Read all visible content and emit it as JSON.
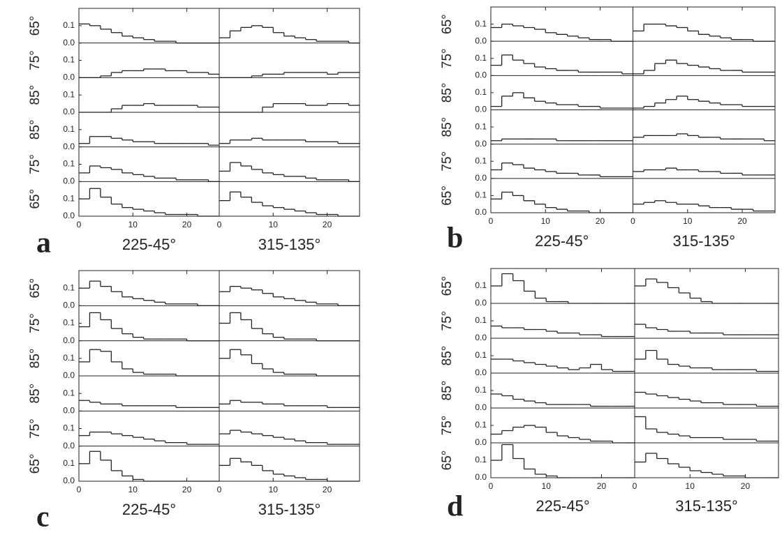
{
  "chart_data": [
    {
      "type": "step",
      "label": "a",
      "columns": [
        "225-45°",
        "315-135°"
      ],
      "row_labels": [
        "65°",
        "75°",
        "85°",
        "85°",
        "75°",
        "65°"
      ],
      "bins": [
        0,
        2,
        4,
        6,
        8,
        10,
        12,
        14,
        16,
        18,
        20,
        22,
        24,
        26
      ],
      "xlim": [
        0,
        26
      ],
      "xticks": [
        0,
        10,
        20
      ],
      "ylim": [
        0,
        0.2
      ],
      "yticks": [
        {
          "value": 0,
          "label": "0.0"
        },
        {
          "value": 0.1,
          "label": "0.1"
        }
      ],
      "values": [
        [
          [
            0.11,
            0.1,
            0.08,
            0.06,
            0.04,
            0.03,
            0.02,
            0.01,
            0.01,
            0,
            0,
            0,
            0
          ],
          [
            0,
            0,
            0.01,
            0.03,
            0.04,
            0.04,
            0.05,
            0.05,
            0.04,
            0.04,
            0.03,
            0.03,
            0.02
          ],
          [
            0,
            0,
            0,
            0.02,
            0.04,
            0.04,
            0.05,
            0.04,
            0.04,
            0.04,
            0.04,
            0.03,
            0.03
          ],
          [
            0.02,
            0.06,
            0.06,
            0.05,
            0.04,
            0.03,
            0.03,
            0.02,
            0.02,
            0.02,
            0.02,
            0.02,
            0.01
          ],
          [
            0.05,
            0.09,
            0.08,
            0.07,
            0.05,
            0.04,
            0.03,
            0.02,
            0.02,
            0.01,
            0.01,
            0.01,
            0
          ],
          [
            0.1,
            0.16,
            0.11,
            0.07,
            0.05,
            0.04,
            0.03,
            0.02,
            0.01,
            0.01,
            0.01,
            0,
            0
          ]
        ],
        [
          [
            0.03,
            0.07,
            0.09,
            0.1,
            0.09,
            0.06,
            0.04,
            0.03,
            0.02,
            0.01,
            0.01,
            0.01,
            0
          ],
          [
            0,
            0,
            0,
            0.01,
            0.02,
            0.02,
            0.03,
            0.03,
            0.03,
            0.03,
            0.02,
            0.03,
            0.03
          ],
          [
            0,
            0,
            0,
            0,
            0.03,
            0.05,
            0.05,
            0.05,
            0.04,
            0.04,
            0.05,
            0.05,
            0.04
          ],
          [
            0.02,
            0.04,
            0.04,
            0.05,
            0.04,
            0.04,
            0.04,
            0.04,
            0.03,
            0.03,
            0.03,
            0.02,
            0.02
          ],
          [
            0.06,
            0.11,
            0.09,
            0.07,
            0.05,
            0.04,
            0.03,
            0.03,
            0.02,
            0.01,
            0.01,
            0.01,
            0
          ],
          [
            0.09,
            0.14,
            0.11,
            0.08,
            0.06,
            0.05,
            0.04,
            0.03,
            0.02,
            0.01,
            0.01,
            0,
            0
          ]
        ]
      ]
    },
    {
      "type": "step",
      "label": "b",
      "columns": [
        "225-45°",
        "315-135°"
      ],
      "row_labels": [
        "65°",
        "75°",
        "85°",
        "85°",
        "75°",
        "65°"
      ],
      "bins": [
        0,
        2,
        4,
        6,
        8,
        10,
        12,
        14,
        16,
        18,
        20,
        22,
        24,
        26
      ],
      "xlim": [
        0,
        26
      ],
      "xticks": [
        0,
        10,
        20
      ],
      "ylim": [
        0,
        0.2
      ],
      "yticks": [
        {
          "value": 0,
          "label": "0.0"
        },
        {
          "value": 0.1,
          "label": "0.1"
        }
      ],
      "values": [
        [
          [
            0.08,
            0.1,
            0.09,
            0.08,
            0.07,
            0.05,
            0.04,
            0.03,
            0.02,
            0.01,
            0.01,
            0,
            0
          ],
          [
            0.06,
            0.12,
            0.09,
            0.07,
            0.05,
            0.04,
            0.03,
            0.03,
            0.02,
            0.02,
            0.02,
            0.02,
            0.01
          ],
          [
            0.02,
            0.08,
            0.1,
            0.07,
            0.05,
            0.04,
            0.03,
            0.03,
            0.02,
            0.02,
            0.01,
            0.01,
            0.01
          ],
          [
            0.02,
            0.03,
            0.03,
            0.03,
            0.03,
            0.03,
            0.02,
            0.02,
            0.02,
            0.02,
            0.02,
            0.02,
            0.02
          ],
          [
            0.05,
            0.09,
            0.08,
            0.06,
            0.05,
            0.04,
            0.03,
            0.03,
            0.02,
            0.02,
            0.01,
            0.01,
            0.01
          ],
          [
            0.08,
            0.12,
            0.1,
            0.07,
            0.05,
            0.03,
            0.02,
            0.01,
            0.01,
            0,
            0,
            0,
            0
          ]
        ],
        [
          [
            0.06,
            0.1,
            0.1,
            0.09,
            0.08,
            0.06,
            0.04,
            0.03,
            0.02,
            0.01,
            0.01,
            0,
            0
          ],
          [
            0.01,
            0.03,
            0.07,
            0.09,
            0.07,
            0.06,
            0.05,
            0.04,
            0.03,
            0.03,
            0.02,
            0.02,
            0.02
          ],
          [
            0.01,
            0.02,
            0.04,
            0.06,
            0.08,
            0.06,
            0.05,
            0.04,
            0.03,
            0.03,
            0.02,
            0.02,
            0.02
          ],
          [
            0.04,
            0.05,
            0.05,
            0.05,
            0.06,
            0.05,
            0.04,
            0.04,
            0.03,
            0.03,
            0.03,
            0.03,
            0.02
          ],
          [
            0.04,
            0.05,
            0.05,
            0.06,
            0.05,
            0.05,
            0.04,
            0.04,
            0.03,
            0.03,
            0.02,
            0.02,
            0.02
          ],
          [
            0.05,
            0.06,
            0.07,
            0.06,
            0.05,
            0.05,
            0.04,
            0.03,
            0.03,
            0.02,
            0.02,
            0.01,
            0.01
          ]
        ]
      ]
    },
    {
      "type": "step",
      "label": "c",
      "columns": [
        "225-45°",
        "315-135°"
      ],
      "row_labels": [
        "65°",
        "75°",
        "85°",
        "85°",
        "75°",
        "65°"
      ],
      "bins": [
        0,
        2,
        4,
        6,
        8,
        10,
        12,
        14,
        16,
        18,
        20,
        22,
        24,
        26
      ],
      "xlim": [
        0,
        26
      ],
      "xticks": [
        0,
        10,
        20
      ],
      "ylim": [
        0,
        0.2
      ],
      "yticks": [
        {
          "value": 0,
          "label": "0.0"
        },
        {
          "value": 0.1,
          "label": "0.1"
        }
      ],
      "values": [
        [
          [
            0.1,
            0.14,
            0.11,
            0.08,
            0.05,
            0.04,
            0.03,
            0.02,
            0.01,
            0.01,
            0.01,
            0,
            0
          ],
          [
            0.08,
            0.16,
            0.12,
            0.07,
            0.04,
            0.02,
            0.01,
            0.01,
            0.01,
            0.01,
            0,
            0,
            0
          ],
          [
            0.08,
            0.15,
            0.14,
            0.08,
            0.04,
            0.02,
            0.01,
            0.01,
            0.01,
            0,
            0,
            0,
            0
          ],
          [
            0.06,
            0.05,
            0.04,
            0.04,
            0.03,
            0.03,
            0.03,
            0.03,
            0.03,
            0.02,
            0.02,
            0.02,
            0.02
          ],
          [
            0.06,
            0.08,
            0.08,
            0.07,
            0.06,
            0.05,
            0.04,
            0.03,
            0.02,
            0.02,
            0.01,
            0.01,
            0.01
          ],
          [
            0.1,
            0.17,
            0.12,
            0.06,
            0.03,
            0.01,
            0,
            0,
            0,
            0,
            0,
            0,
            0
          ]
        ],
        [
          [
            0.08,
            0.11,
            0.1,
            0.09,
            0.07,
            0.05,
            0.04,
            0.03,
            0.02,
            0.01,
            0.01,
            0,
            0
          ],
          [
            0.1,
            0.16,
            0.12,
            0.07,
            0.04,
            0.02,
            0.01,
            0.01,
            0.01,
            0,
            0,
            0,
            0
          ],
          [
            0.1,
            0.15,
            0.12,
            0.07,
            0.04,
            0.02,
            0.01,
            0.01,
            0.01,
            0,
            0,
            0,
            0
          ],
          [
            0.04,
            0.06,
            0.05,
            0.05,
            0.04,
            0.04,
            0.03,
            0.03,
            0.03,
            0.03,
            0.02,
            0.02,
            0.02
          ],
          [
            0.07,
            0.09,
            0.08,
            0.07,
            0.06,
            0.05,
            0.04,
            0.03,
            0.02,
            0.02,
            0.01,
            0.01,
            0.01
          ],
          [
            0.09,
            0.13,
            0.11,
            0.09,
            0.06,
            0.04,
            0.03,
            0.02,
            0.01,
            0.01,
            0,
            0,
            0
          ]
        ]
      ]
    },
    {
      "type": "step",
      "label": "d",
      "columns": [
        "225-45°",
        "315-135°"
      ],
      "row_labels": [
        "65°",
        "75°",
        "85°",
        "85°",
        "75°",
        "65°"
      ],
      "bins": [
        0,
        2,
        4,
        6,
        8,
        10,
        12,
        14,
        16,
        18,
        20,
        22,
        24,
        26
      ],
      "xlim": [
        0,
        26
      ],
      "xticks": [
        0,
        10,
        20
      ],
      "ylim": [
        0,
        0.2
      ],
      "yticks": [
        {
          "value": 0,
          "label": "0.0"
        },
        {
          "value": 0.1,
          "label": "0.1"
        }
      ],
      "values": [
        [
          [
            0.1,
            0.17,
            0.13,
            0.07,
            0.03,
            0.01,
            0.01,
            0,
            0,
            0,
            0,
            0,
            0
          ],
          [
            0.07,
            0.06,
            0.06,
            0.05,
            0.05,
            0.04,
            0.03,
            0.03,
            0.02,
            0.02,
            0.01,
            0.01,
            0.01
          ],
          [
            0.08,
            0.08,
            0.07,
            0.06,
            0.05,
            0.04,
            0.03,
            0.02,
            0.03,
            0.05,
            0.02,
            0.01,
            0.01
          ],
          [
            0.08,
            0.07,
            0.05,
            0.04,
            0.03,
            0.02,
            0.02,
            0.02,
            0.02,
            0.01,
            0.01,
            0.01,
            0.01
          ],
          [
            0.05,
            0.07,
            0.09,
            0.1,
            0.09,
            0.06,
            0.04,
            0.03,
            0.02,
            0.01,
            0.01,
            0,
            0
          ],
          [
            0.1,
            0.19,
            0.11,
            0.05,
            0.02,
            0.01,
            0,
            0,
            0,
            0,
            0,
            0,
            0
          ]
        ],
        [
          [
            0.1,
            0.14,
            0.12,
            0.09,
            0.06,
            0.03,
            0.01,
            0,
            0,
            0,
            0,
            0,
            0
          ],
          [
            0.08,
            0.06,
            0.05,
            0.04,
            0.04,
            0.03,
            0.03,
            0.03,
            0.02,
            0.02,
            0.02,
            0.02,
            0.02
          ],
          [
            0.08,
            0.13,
            0.08,
            0.05,
            0.04,
            0.03,
            0.03,
            0.02,
            0.02,
            0.02,
            0.02,
            0.01,
            0.01
          ],
          [
            0.09,
            0.08,
            0.07,
            0.06,
            0.05,
            0.04,
            0.03,
            0.03,
            0.02,
            0.02,
            0.02,
            0.01,
            0.01
          ],
          [
            0.15,
            0.08,
            0.06,
            0.05,
            0.04,
            0.03,
            0.03,
            0.03,
            0.02,
            0.02,
            0.02,
            0.01,
            0.01
          ],
          [
            0.09,
            0.14,
            0.11,
            0.08,
            0.06,
            0.04,
            0.03,
            0.02,
            0.01,
            0.01,
            0,
            0,
            0
          ]
        ]
      ]
    }
  ]
}
